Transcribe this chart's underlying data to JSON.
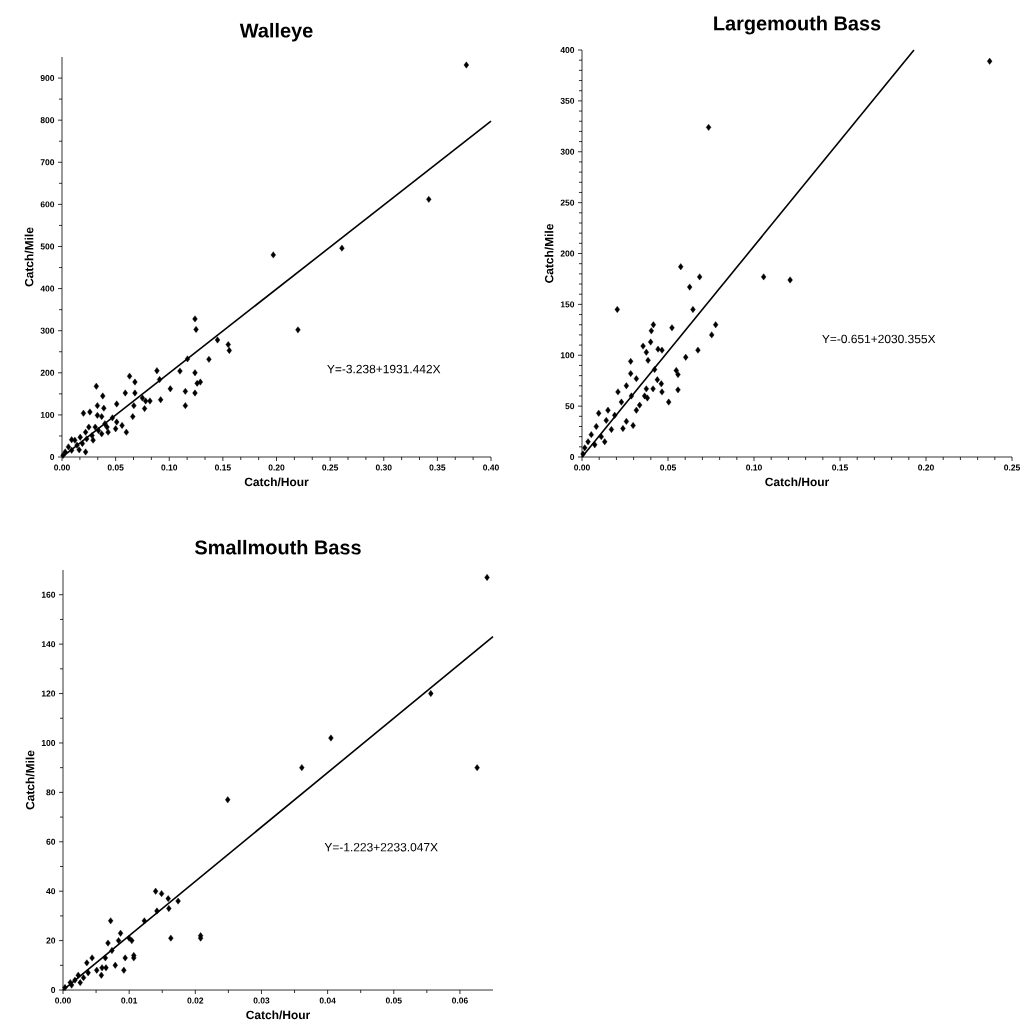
{
  "chart_data": [
    {
      "type": "scatter",
      "title": "Walleye",
      "xlabel": "Catch/Hour",
      "ylabel": "Catch/Mile",
      "xlim": [
        0,
        0.4
      ],
      "ylim": [
        0,
        950
      ],
      "xticks": [
        {
          "value": 0,
          "label": "0.00"
        },
        {
          "value": 0.05,
          "label": "0.05"
        },
        {
          "value": 0.1,
          "label": "0.10"
        },
        {
          "value": 0.15,
          "label": "0.15"
        },
        {
          "value": 0.2,
          "label": "0.20"
        },
        {
          "value": 0.25,
          "label": "0.25"
        },
        {
          "value": 0.3,
          "label": "0.30"
        },
        {
          "value": 0.35,
          "label": "0.35"
        },
        {
          "value": 0.4,
          "label": "0.40"
        }
      ],
      "yticks": [
        0,
        100,
        200,
        300,
        400,
        500,
        600,
        700,
        800,
        900
      ],
      "annotations": [
        "Y=-3.238+1931.442X"
      ],
      "series": [
        {
          "marker": "diamond",
          "color": "#000000",
          "x": [
            0.377,
            0.342,
            0.261,
            0.197,
            0.22,
            0.124,
            0.125,
            0.145,
            0.155,
            0.156,
            0.137,
            0.117,
            0.11,
            0.0885,
            0.091,
            0.124,
            0.126,
            0.129,
            0.115,
            0.124,
            0.115,
            0.101,
            0.092,
            0.063,
            0.068,
            0.059,
            0.068,
            0.075,
            0.078,
            0.082,
            0.077,
            0.067,
            0.066,
            0.051,
            0.032,
            0.038,
            0.033,
            0.039,
            0.026,
            0.02,
            0.033,
            0.037,
            0.047,
            0.06,
            0.056,
            0.05,
            0.04,
            0.043,
            0.031,
            0.025,
            0.022,
            0.028,
            0.017,
            0.012,
            0.009,
            0.023,
            0.019,
            0.014,
            0.006,
            0.003,
            0.001,
            0.034,
            0.037,
            0.016,
            0.022,
            0.009,
            0.029,
            0.042,
            0.051
          ],
          "values": [
            931,
            612,
            496,
            480,
            302,
            328,
            303,
            278,
            267,
            253,
            232,
            233,
            204,
            205,
            184,
            200,
            175,
            178,
            156,
            152,
            122,
            162,
            136,
            192,
            178,
            152,
            152,
            140,
            133,
            133,
            115,
            122,
            96,
            126,
            168,
            145,
            122,
            116,
            107,
            104,
            99,
            96,
            93,
            59,
            75,
            67,
            79,
            59,
            71,
            71,
            59,
            51,
            47,
            40,
            41,
            43,
            32,
            28,
            24,
            12,
            4,
            63,
            55,
            17,
            12,
            16,
            40,
            71,
            83
          ]
        },
        {
          "type": "line",
          "marker": "none",
          "color": "#000000",
          "x": [
            0,
            0.4
          ],
          "values": [
            0,
            798
          ]
        }
      ]
    },
    {
      "type": "scatter",
      "title": "Largemouth Bass",
      "xlabel": "Catch/Hour",
      "ylabel": "Catch/Mile",
      "xlim": [
        0,
        0.25
      ],
      "ylim": [
        0,
        400
      ],
      "xticks": [
        {
          "value": 0,
          "label": "0.00"
        },
        {
          "value": 0.05,
          "label": "0.05"
        },
        {
          "value": 0.1,
          "label": "0.10"
        },
        {
          "value": 0.15,
          "label": "0.15"
        },
        {
          "value": 0.2,
          "label": "0.20"
        },
        {
          "value": 0.25,
          "label": "0.25"
        }
      ],
      "yticks": [
        0,
        50,
        100,
        150,
        200,
        250,
        300,
        350,
        400
      ],
      "annotations": [
        "Y=-0.651+2030.355X"
      ],
      "series": [
        {
          "marker": "diamond",
          "color": "#000000",
          "x": [
            0.237,
            0.0736,
            0.0574,
            0.0684,
            0.1056,
            0.121,
            0.0626,
            0.0205,
            0.0645,
            0.0777,
            0.0754,
            0.0415,
            0.0403,
            0.0523,
            0.0399,
            0.0355,
            0.0374,
            0.0384,
            0.0442,
            0.0465,
            0.0674,
            0.0603,
            0.0283,
            0.0422,
            0.0548,
            0.0558,
            0.0283,
            0.0316,
            0.0438,
            0.0461,
            0.0413,
            0.0465,
            0.0558,
            0.0504,
            0.0258,
            0.0209,
            0.0287,
            0.0229,
            0.0316,
            0.0374,
            0.038,
            0.0097,
            0.0151,
            0.019,
            0.0238,
            0.0141,
            0.0083,
            0.0171,
            0.0054,
            0.0112,
            0.0035,
            0.0016,
            0.0006,
            0.0074,
            0.0132,
            0.0258,
            0.0297,
            0.0364,
            0.0335
          ],
          "values": [
            389,
            324,
            187,
            177,
            177,
            174,
            167,
            145,
            145,
            130,
            120,
            130,
            124,
            127,
            113,
            109,
            103,
            95,
            106,
            105,
            105,
            98,
            94,
            86,
            85,
            81,
            82,
            77,
            76,
            72,
            67,
            64,
            66,
            54,
            70,
            64,
            60,
            54,
            46,
            67,
            58,
            43,
            46,
            41,
            28,
            36,
            30,
            27,
            22,
            20,
            15,
            9,
            3,
            12,
            15,
            35,
            31,
            60,
            51
          ]
        },
        {
          "type": "line",
          "marker": "none",
          "color": "#000000",
          "x": [
            0,
            0.193
          ],
          "values": [
            0,
            400
          ]
        }
      ]
    },
    {
      "type": "scatter",
      "title": "Smallmouth Bass",
      "xlabel": "Catch/Hour",
      "ylabel": "Catch/Mile",
      "xlim": [
        0,
        0.065
      ],
      "ylim": [
        0,
        170
      ],
      "xticks": [
        {
          "value": 0,
          "label": "0.00"
        },
        {
          "value": 0.01,
          "label": "0.01"
        },
        {
          "value": 0.02,
          "label": "0.02"
        },
        {
          "value": 0.03,
          "label": "0.03"
        },
        {
          "value": 0.04,
          "label": "0.04"
        },
        {
          "value": 0.05,
          "label": "0.05"
        },
        {
          "value": 0.06,
          "label": "0.06"
        }
      ],
      "yticks": [
        0,
        20,
        40,
        60,
        80,
        100,
        120,
        140,
        160
      ],
      "annotations": [
        "Y=-1.223+2233.047X"
      ],
      "series": [
        {
          "marker": "diamond",
          "color": "#000000",
          "x": [
            0.0641,
            0.0556,
            0.0405,
            0.0361,
            0.0626,
            0.0249,
            0.0208,
            0.0208,
            0.0163,
            0.014,
            0.0149,
            0.0159,
            0.0174,
            0.016,
            0.0142,
            0.0123,
            0.0072,
            0.0087,
            0.0084,
            0.01,
            0.0104,
            0.0068,
            0.0074,
            0.0094,
            0.0107,
            0.0107,
            0.0079,
            0.0092,
            0.0044,
            0.0036,
            0.0064,
            0.0059,
            0.0065,
            0.0058,
            0.0051,
            0.0031,
            0.0023,
            0.0018,
            0.0011,
            0.0003,
            0.0038,
            0.0026,
            0.0013
          ],
          "values": [
            167,
            120,
            102,
            90,
            90,
            77,
            22,
            21,
            21,
            40,
            39,
            37,
            36,
            33,
            32,
            28,
            28,
            23,
            20,
            21,
            20,
            19,
            16,
            13,
            14,
            13,
            10,
            8,
            13,
            11,
            13,
            9,
            9,
            6,
            8,
            5,
            6,
            4,
            3,
            1,
            7,
            3,
            2
          ]
        },
        {
          "type": "line",
          "marker": "none",
          "color": "#000000",
          "x": [
            0,
            0.065
          ],
          "values": [
            0,
            143
          ]
        }
      ]
    }
  ]
}
